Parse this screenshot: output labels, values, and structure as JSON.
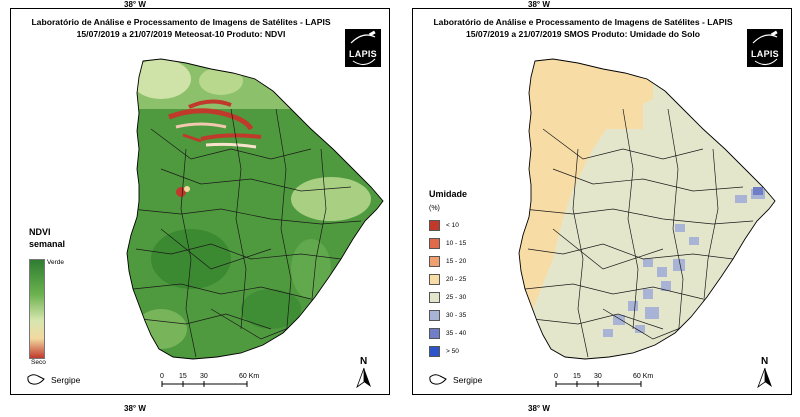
{
  "outer_labels": {
    "top_left": "38° W",
    "top_right": "38° W",
    "bottom_left": "38° W",
    "bottom_right": "38° W"
  },
  "left_panel": {
    "title_line1": "Laboratório de Análise e Processamento de Imagens de Satélites - LAPIS",
    "title_line2": "15/07/2019  a  21/07/2019            Meteosat-10       Produto: NDVI",
    "logo_text": "LAPIS",
    "legend": {
      "title_line1": "NDVI",
      "title_line2": "semanal",
      "top_label": "Verde",
      "bottom_label": "Seco",
      "colors": [
        "#2e7d32",
        "#6cb24f",
        "#d8e6b0",
        "#f2d9a0",
        "#c0392b"
      ]
    },
    "sergipe_label": "Sergipe",
    "scale": {
      "ticks": [
        "0",
        "15",
        "30",
        "60 Km"
      ]
    },
    "north_label": "N"
  },
  "right_panel": {
    "title_line1": "Laboratório de Análise e Processamento de Imagens de Satélites - LAPIS",
    "title_line2": "15/07/2019  a  21/07/2019       SMOS     Produto: Umidade do Solo",
    "logo_text": "LAPIS",
    "legend": {
      "title": "Umidade",
      "unit": "(%)",
      "classes": [
        {
          "label": "< 10",
          "color": "#c0392b"
        },
        {
          "label": "10 - 15",
          "color": "#e06a4a"
        },
        {
          "label": "15 - 20",
          "color": "#f0a070"
        },
        {
          "label": "20 - 25",
          "color": "#f7dca6"
        },
        {
          "label": "25 - 30",
          "color": "#e4e6cc"
        },
        {
          "label": "30 - 35",
          "color": "#a9b3d6"
        },
        {
          "label": "35 - 40",
          "color": "#6f7ec6"
        },
        {
          "label": "> 50",
          "color": "#2d54c8"
        }
      ]
    },
    "sergipe_label": "Sergipe",
    "scale": {
      "ticks": [
        "0",
        "15",
        "30",
        "60 Km"
      ]
    },
    "north_label": "N"
  }
}
